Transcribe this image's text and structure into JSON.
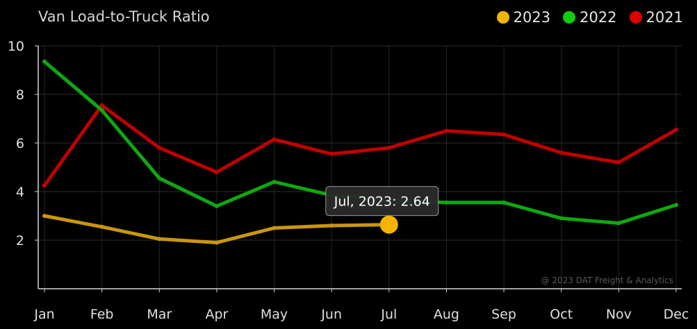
{
  "chart_data": {
    "type": "line",
    "title": "Van Load-to-Truck Ratio",
    "xlabel": "",
    "ylabel": "",
    "categories": [
      "Jan",
      "Feb",
      "Mar",
      "Apr",
      "May",
      "Jun",
      "Jul",
      "Aug",
      "Sep",
      "Oct",
      "Nov",
      "Dec"
    ],
    "ylim": [
      0,
      10
    ],
    "yticks": [
      2,
      4,
      6,
      8,
      10
    ],
    "grid": true,
    "legend_position": "top-right",
    "series": [
      {
        "name": "2023",
        "color": "#f5b400",
        "line_color": "#c9960f",
        "values": [
          3.0,
          2.55,
          2.05,
          1.9,
          2.5,
          2.6,
          2.64,
          null,
          null,
          null,
          null,
          null
        ]
      },
      {
        "name": "2022",
        "color": "#11cc11",
        "line_color": "#0fa80f",
        "values": [
          9.35,
          7.35,
          4.55,
          3.4,
          4.4,
          3.85,
          3.65,
          3.55,
          3.55,
          2.9,
          2.7,
          3.45
        ]
      },
      {
        "name": "2021",
        "color": "#dd0000",
        "line_color": "#c00000",
        "values": [
          4.25,
          7.55,
          5.8,
          4.8,
          6.15,
          5.55,
          5.8,
          6.5,
          6.35,
          5.6,
          5.2,
          6.55
        ]
      }
    ],
    "tooltip": {
      "text": "Jul, 2023: 2.64",
      "category": "Jul",
      "series": "2023",
      "value": 2.64
    },
    "credit": "@ 2023 DAT Freight & Analytics"
  },
  "legend": [
    {
      "label": "2023",
      "color": "#f5b400"
    },
    {
      "label": "2022",
      "color": "#11cc11"
    },
    {
      "label": "2021",
      "color": "#dd0000"
    }
  ]
}
